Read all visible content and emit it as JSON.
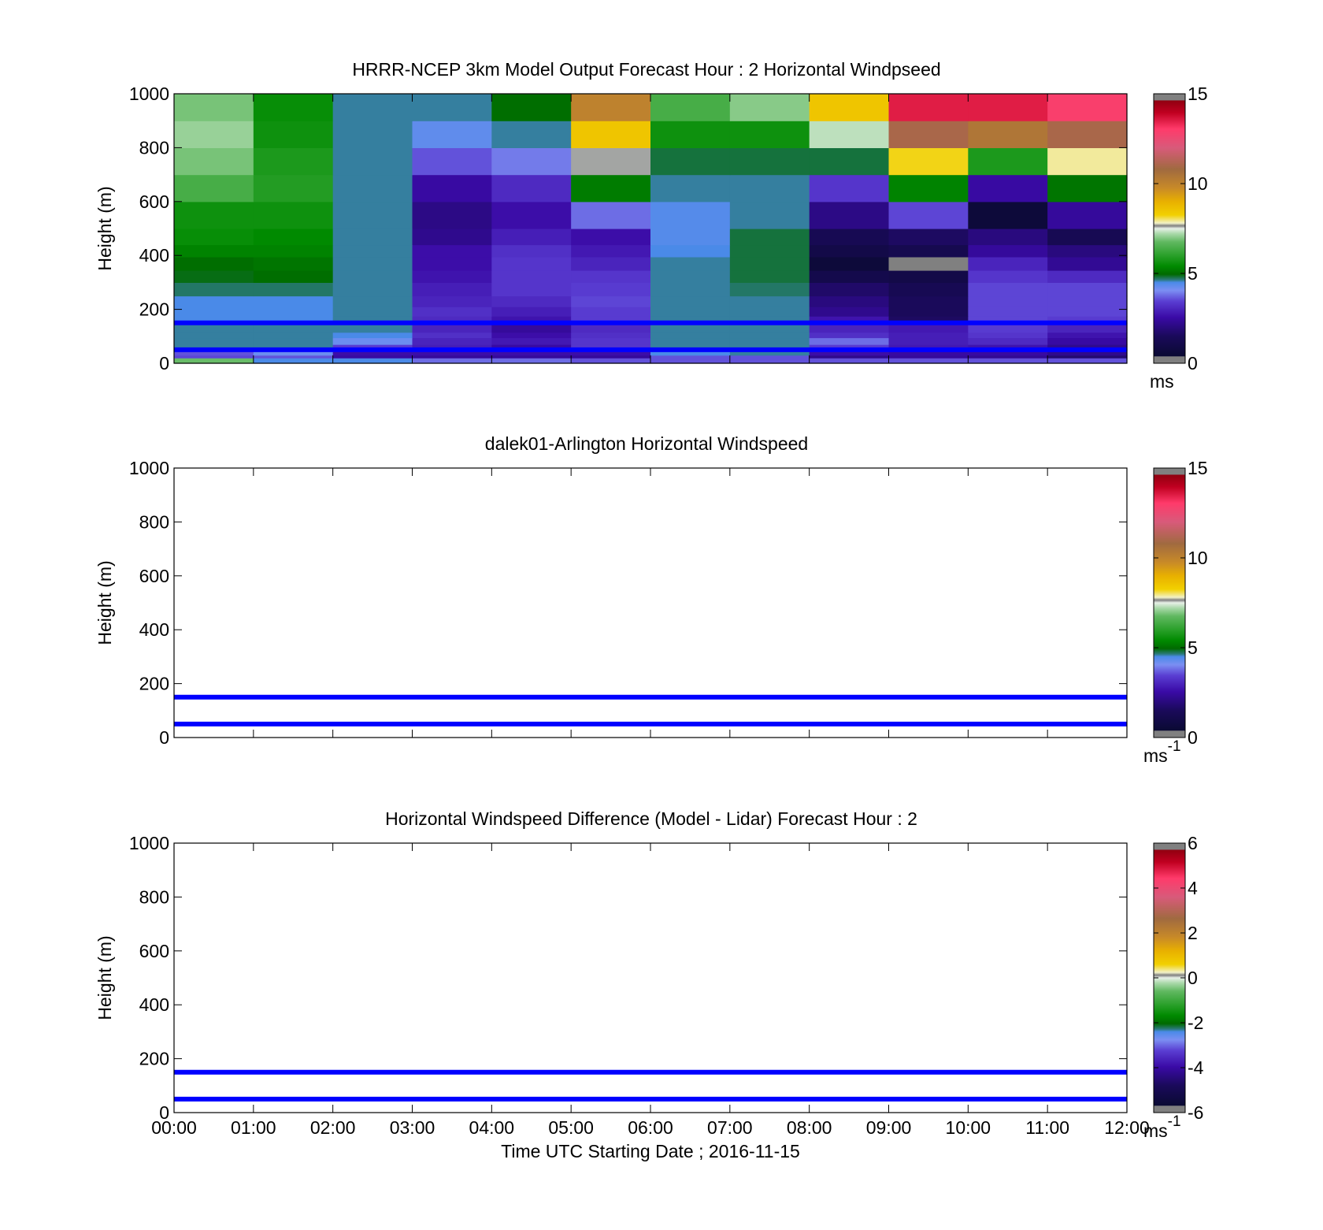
{
  "figure": {
    "xaxis_label": "Time UTC  Starting Date ; 2016-11-15",
    "time_ticks": [
      "00:00",
      "01:00",
      "02:00",
      "03:00",
      "04:00",
      "05:00",
      "06:00",
      "07:00",
      "08:00",
      "09:00",
      "10:00",
      "11:00",
      "12:00"
    ],
    "lines": {
      "color": "#0000ff",
      "heights_m": [
        150,
        50
      ]
    }
  },
  "chart_data": [
    {
      "type": "heatmap",
      "title": "HRRR-NCEP 3km Model Output   Forecast Hour : 2 Horizontal Windpseed",
      "ylabel": "Height (m)",
      "xlabel": "",
      "ylim": [
        0,
        1000
      ],
      "yticks": [
        "0",
        "200",
        "400",
        "600",
        "800",
        "1000"
      ],
      "xlim_hours": [
        0,
        12
      ],
      "colorbar": {
        "min": 0,
        "max": 15,
        "ticks": [
          "0",
          "5",
          "10",
          "15"
        ],
        "units": "ms",
        "units_exp": ""
      },
      "column_hours": [
        0,
        1,
        2,
        3,
        4,
        5,
        6,
        7,
        8,
        9,
        10,
        11
      ],
      "row_bounds_m": [
        0,
        20,
        30,
        50,
        70,
        95,
        115,
        150,
        175,
        210,
        250,
        300,
        345,
        395,
        440,
        500,
        600,
        700,
        800,
        900,
        1000
      ],
      "values": [
        [
          6.8,
          4.5,
          4.5,
          3.8,
          3.8,
          3.6,
          3.6,
          3.6,
          3.6,
          3.6,
          3.6,
          3.6
        ],
        [
          3.5,
          3.6,
          2.5,
          2.4,
          2.4,
          2.4,
          3.6,
          3.6,
          2.2,
          2.4,
          2.3,
          1.8
        ],
        [
          3.6,
          4.2,
          2.6,
          2.6,
          2.6,
          2.6,
          4.5,
          4.6,
          2.6,
          2.5,
          2.5,
          2.2
        ],
        [
          4.6,
          4.6,
          3.4,
          2.9,
          2.5,
          3.3,
          4.6,
          4.6,
          3.4,
          2.8,
          2.7,
          2.2
        ],
        [
          4.6,
          4.6,
          4.2,
          3.0,
          2.8,
          3.3,
          4.6,
          4.6,
          3.8,
          2.9,
          3.1,
          2.5
        ],
        [
          4.6,
          4.6,
          4.5,
          3.2,
          2.6,
          3.2,
          4.6,
          4.6,
          3.2,
          2.9,
          3.3,
          2.7
        ],
        [
          4.6,
          4.6,
          4.6,
          3.0,
          2.4,
          3.1,
          4.6,
          4.6,
          3.0,
          2.8,
          3.4,
          3.0
        ],
        [
          4.5,
          4.5,
          4.6,
          3.1,
          2.7,
          3.4,
          4.6,
          4.6,
          2.7,
          1.6,
          3.5,
          3.4
        ],
        [
          4.5,
          4.5,
          4.6,
          3.2,
          2.9,
          3.4,
          4.6,
          4.6,
          2.2,
          1.5,
          3.5,
          3.5
        ],
        [
          4.5,
          4.5,
          4.6,
          3.0,
          3.1,
          3.5,
          4.6,
          4.6,
          2.0,
          1.5,
          3.5,
          3.5
        ],
        [
          4.7,
          4.7,
          4.6,
          2.9,
          3.3,
          3.4,
          4.6,
          4.7,
          1.7,
          1.3,
          3.5,
          3.5
        ],
        [
          4.9,
          5.0,
          4.6,
          2.7,
          3.3,
          3.3,
          4.6,
          4.8,
          1.1,
          1.0,
          3.3,
          3.1
        ],
        [
          5.0,
          5.1,
          4.6,
          2.6,
          3.3,
          3.0,
          4.6,
          4.8,
          0.6,
          15.5,
          3.0,
          2.3
        ],
        [
          5.3,
          5.3,
          4.6,
          2.6,
          3.2,
          2.8,
          4.5,
          4.8,
          1.0,
          1.2,
          2.4,
          2.0
        ],
        [
          5.5,
          5.4,
          4.6,
          2.2,
          2.9,
          2.6,
          4.4,
          4.8,
          1.3,
          1.6,
          2.0,
          1.3
        ],
        [
          5.6,
          5.6,
          4.6,
          2.1,
          2.6,
          3.8,
          4.4,
          4.6,
          2.1,
          3.5,
          0.6,
          2.4
        ],
        [
          6.4,
          5.9,
          4.6,
          2.5,
          3.1,
          5.2,
          4.6,
          4.6,
          3.3,
          5.3,
          2.5,
          5.1
        ],
        [
          6.9,
          5.8,
          4.6,
          3.6,
          3.9,
          7.6,
          4.8,
          4.8,
          4.8,
          8.2,
          5.8,
          7.9
        ],
        [
          7.1,
          5.6,
          4.6,
          4.3,
          4.6,
          8.5,
          5.6,
          5.6,
          7.3,
          11.0,
          10.4,
          11.0
        ],
        [
          6.9,
          5.5,
          4.6,
          4.6,
          5.0,
          10.0,
          6.4,
          7.0,
          8.5,
          13.5,
          13.5,
          12.9
        ]
      ]
    },
    {
      "type": "heatmap",
      "title": "dalek01-Arlington  Horizontal Windspeed",
      "ylabel": "Height (m)",
      "xlabel": "",
      "ylim": [
        0,
        1000
      ],
      "yticks": [
        "0",
        "200",
        "400",
        "600",
        "800",
        "1000"
      ],
      "xlim_hours": [
        0,
        12
      ],
      "colorbar": {
        "min": 0,
        "max": 15,
        "ticks": [
          "0",
          "5",
          "10",
          "15"
        ],
        "units": "ms",
        "units_exp": "-1"
      },
      "values": []
    },
    {
      "type": "heatmap",
      "title": "Horizontal Windspeed Difference (Model - Lidar) Forecast Hour : 2",
      "ylabel": "Height (m)",
      "xlabel": "Time UTC  Starting Date ; 2016-11-15",
      "ylim": [
        0,
        1000
      ],
      "yticks": [
        "0",
        "200",
        "400",
        "600",
        "800",
        "1000"
      ],
      "xlim_hours": [
        0,
        12
      ],
      "colorbar": {
        "min": -6,
        "max": 6,
        "ticks": [
          "-6",
          "-4",
          "-2",
          "0",
          "2",
          "4",
          "6"
        ],
        "units": "ms",
        "units_exp": "-1"
      },
      "values": []
    }
  ],
  "colormap_stops": [
    [
      0.0,
      "#808080"
    ],
    [
      0.025,
      "#808080"
    ],
    [
      0.026,
      "#0a0a33"
    ],
    [
      0.1,
      "#1a0a5a"
    ],
    [
      0.17,
      "#3a0aa6"
    ],
    [
      0.23,
      "#5a3ed2"
    ],
    [
      0.27,
      "#7b8ff2"
    ],
    [
      0.3,
      "#4a8ae8"
    ],
    [
      0.31,
      "#2a7a7a"
    ],
    [
      0.33,
      "#006a00"
    ],
    [
      0.36,
      "#008a00"
    ],
    [
      0.4,
      "#2aa02a"
    ],
    [
      0.45,
      "#60b860"
    ],
    [
      0.48,
      "#a8d8a8"
    ],
    [
      0.5,
      "#e8f0e8"
    ],
    [
      0.51,
      "#808080"
    ],
    [
      0.52,
      "#f2f2c8"
    ],
    [
      0.55,
      "#f2d000"
    ],
    [
      0.6,
      "#e8b000"
    ],
    [
      0.65,
      "#c88a28"
    ],
    [
      0.72,
      "#a06a40"
    ],
    [
      0.8,
      "#d85a7a"
    ],
    [
      0.87,
      "#ff3a6a"
    ],
    [
      0.93,
      "#c00020"
    ],
    [
      0.975,
      "#900010"
    ],
    [
      0.976,
      "#808080"
    ],
    [
      1.0,
      "#808080"
    ]
  ]
}
